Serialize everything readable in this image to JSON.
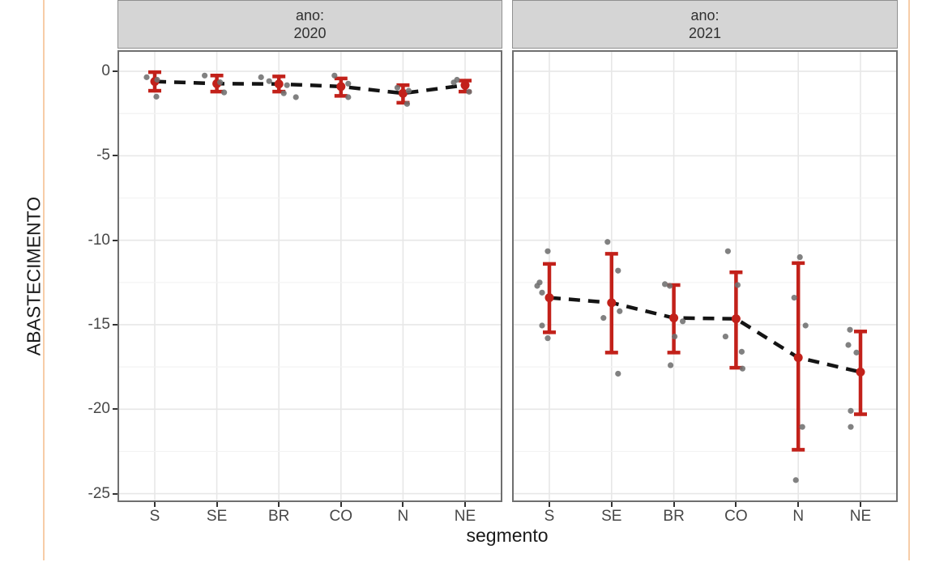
{
  "page": {
    "border_color": "#f7cda8",
    "background": "#ffffff"
  },
  "chart_data": {
    "type": "scatter",
    "subtype": "jitter-points with mean dot, CI errorbar and dashed mean line, faceted by year",
    "xlabel": "segmento",
    "ylabel": "ABASTECIMENTO",
    "categories": [
      "S",
      "SE",
      "BR",
      "CO",
      "N",
      "NE"
    ],
    "y_ticks": [
      0,
      -5,
      -10,
      -15,
      -20,
      -25
    ],
    "y_minor_ticks": [
      -2.5,
      -7.5,
      -12.5,
      -17.5,
      -22.5
    ],
    "ylim": [
      1.25,
      -25.5
    ],
    "grid": "on",
    "legend": "none",
    "colors": {
      "errorbar": "#c2211a",
      "mean_point": "#c2211a",
      "mean_line": "#141414",
      "jitter_point": "#707070",
      "grid_major": "#e7e7e7",
      "grid_minor": "#f3f3f3",
      "strip_bg": "#d5d5d5",
      "panel_border": "#6f6f6f"
    },
    "facets": [
      {
        "strip_line1": "ano:",
        "strip_line2": "2020",
        "means": [
          -0.6,
          -0.73,
          -0.75,
          -0.9,
          -1.3,
          -0.82
        ],
        "ci_high": [
          -0.05,
          -0.25,
          -0.3,
          -0.42,
          -0.82,
          -0.55
        ],
        "ci_low": [
          -1.15,
          -1.2,
          -1.2,
          -1.45,
          -1.86,
          -1.2
        ],
        "points": [
          [
            0,
            -0.35,
            -10
          ],
          [
            0,
            -0.5,
            3
          ],
          [
            0,
            -1.5,
            2
          ],
          [
            1,
            -0.25,
            -15
          ],
          [
            1,
            -0.65,
            4
          ],
          [
            1,
            -1.25,
            9
          ],
          [
            2,
            -0.35,
            -22
          ],
          [
            2,
            -0.58,
            -12
          ],
          [
            2,
            -0.82,
            10
          ],
          [
            2,
            -1.3,
            6
          ],
          [
            2,
            -1.53,
            21
          ],
          [
            3,
            -0.25,
            -8
          ],
          [
            3,
            -0.73,
            9
          ],
          [
            3,
            -1.53,
            9
          ],
          [
            4,
            -0.97,
            -7
          ],
          [
            4,
            -1.15,
            7
          ],
          [
            4,
            -1.93,
            5
          ],
          [
            5,
            -0.5,
            -10
          ],
          [
            5,
            -0.66,
            -14
          ],
          [
            5,
            -1.21,
            5
          ]
        ]
      },
      {
        "strip_line1": "ano:",
        "strip_line2": "2021",
        "means": [
          -13.4,
          -13.7,
          -14.6,
          -14.65,
          -16.95,
          -17.8
        ],
        "ci_high": [
          -11.4,
          -10.8,
          -12.65,
          -11.9,
          -11.35,
          -15.4
        ],
        "ci_low": [
          -15.45,
          -16.65,
          -16.65,
          -17.55,
          -22.4,
          -20.3
        ],
        "points": [
          [
            0,
            -10.65,
            -2
          ],
          [
            0,
            -12.5,
            -12
          ],
          [
            0,
            -12.7,
            -15
          ],
          [
            0,
            -13.1,
            -9
          ],
          [
            0,
            -15.05,
            -9
          ],
          [
            0,
            -15.8,
            -2
          ],
          [
            1,
            -10.1,
            -5
          ],
          [
            1,
            -11.8,
            8
          ],
          [
            1,
            -14.2,
            10
          ],
          [
            1,
            -14.6,
            -10
          ],
          [
            1,
            -17.9,
            8
          ],
          [
            2,
            -12.6,
            -11
          ],
          [
            2,
            -12.7,
            -5
          ],
          [
            2,
            -14.8,
            11
          ],
          [
            2,
            -15.7,
            1
          ],
          [
            2,
            -17.4,
            -4
          ],
          [
            3,
            -10.65,
            -10
          ],
          [
            3,
            -12.65,
            2
          ],
          [
            3,
            -15.7,
            -13
          ],
          [
            3,
            -16.6,
            7
          ],
          [
            3,
            -17.6,
            8
          ],
          [
            4,
            -11.0,
            2
          ],
          [
            4,
            -13.4,
            -5
          ],
          [
            4,
            -15.05,
            9
          ],
          [
            4,
            -21.05,
            5
          ],
          [
            4,
            -24.2,
            -3
          ],
          [
            5,
            -15.3,
            -13
          ],
          [
            5,
            -16.2,
            -15
          ],
          [
            5,
            -16.65,
            -5
          ],
          [
            5,
            -20.1,
            -12
          ],
          [
            5,
            -21.05,
            -12
          ]
        ]
      }
    ]
  },
  "layout_text": {
    "y_tick_labels": [
      "0",
      "-5",
      "-10",
      "-15",
      "-20",
      "-25"
    ]
  }
}
